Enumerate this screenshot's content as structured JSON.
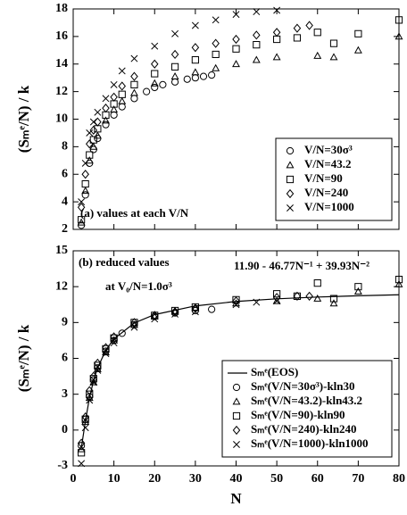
{
  "chart_data": [
    {
      "type": "scatter",
      "y_label": "(Sₘᵉ/N) / k",
      "annotation": "(a) values at each V/N",
      "xlim": [
        0,
        80
      ],
      "xticks": [
        0,
        10,
        20,
        30,
        40,
        50,
        60,
        70,
        80
      ],
      "show_xtick_labels": false,
      "ylim": [
        2,
        18
      ],
      "yticks": [
        2,
        4,
        6,
        8,
        10,
        12,
        14,
        16,
        18
      ],
      "legend": "lower right",
      "series": [
        {
          "name": "V/N=30σ³",
          "marker": "circle",
          "color": "#000000",
          "x": [
            2,
            3,
            4,
            5,
            6,
            8,
            10,
            12,
            15,
            18,
            20,
            22,
            25,
            28,
            30,
            32,
            34
          ],
          "values": [
            2.3,
            4.5,
            6.8,
            7.8,
            8.6,
            9.6,
            10.3,
            10.9,
            11.5,
            12.0,
            12.3,
            12.5,
            12.7,
            12.9,
            13.0,
            13.1,
            13.2
          ]
        },
        {
          "name": "V/N=43.2",
          "marker": "triangle",
          "color": "#000000",
          "x": [
            2,
            3,
            4,
            5,
            6,
            8,
            10,
            12,
            15,
            20,
            25,
            30,
            35,
            40,
            45,
            50,
            60,
            64,
            70,
            80
          ],
          "values": [
            2.5,
            4.8,
            7.0,
            8.0,
            8.8,
            9.9,
            10.7,
            11.3,
            11.9,
            12.6,
            13.1,
            13.4,
            13.7,
            14.0,
            14.3,
            14.5,
            14.6,
            14.5,
            15.0,
            16.0
          ]
        },
        {
          "name": "V/N=90",
          "marker": "square",
          "color": "#000000",
          "x": [
            2,
            3,
            4,
            5,
            6,
            8,
            10,
            12,
            15,
            20,
            25,
            30,
            35,
            40,
            45,
            50,
            55,
            60,
            64,
            70,
            80
          ],
          "values": [
            2.7,
            5.3,
            7.4,
            8.5,
            9.3,
            10.3,
            11.1,
            11.8,
            12.5,
            13.3,
            13.8,
            14.3,
            14.7,
            15.1,
            15.4,
            15.8,
            15.9,
            16.3,
            15.5,
            16.2,
            17.2
          ]
        },
        {
          "name": "V/N=240",
          "marker": "diamond",
          "color": "#000000",
          "x": [
            2,
            3,
            4,
            5,
            6,
            8,
            10,
            12,
            15,
            20,
            25,
            30,
            35,
            40,
            45,
            50,
            55,
            58
          ],
          "values": [
            3.6,
            6.0,
            8.2,
            9.2,
            9.8,
            10.8,
            11.6,
            12.4,
            13.1,
            14.0,
            14.7,
            15.2,
            15.5,
            15.8,
            16.1,
            16.3,
            16.6,
            16.8
          ]
        },
        {
          "name": "V/N=1000",
          "marker": "x",
          "color": "#000000",
          "x": [
            2,
            3,
            4,
            5,
            6,
            8,
            10,
            12,
            15,
            20,
            25,
            30,
            35,
            40,
            45,
            50
          ],
          "values": [
            4.0,
            6.8,
            9.0,
            9.8,
            10.5,
            11.5,
            12.5,
            13.5,
            14.4,
            15.3,
            16.2,
            16.8,
            17.2,
            17.6,
            17.8,
            17.9
          ]
        }
      ]
    },
    {
      "type": "scatter",
      "y_label": "(Sₘᵉ/N) / k",
      "x_label": "N",
      "annotation": "(b) reduced values",
      "annotation2": "at V₀/N=1.0σ³",
      "formula": "11.90 - 46.77N⁻¹ + 39.93N⁻²",
      "xlim": [
        0,
        80
      ],
      "xticks": [
        0,
        10,
        20,
        30,
        40,
        50,
        60,
        70,
        80
      ],
      "show_xtick_labels": true,
      "ylim": [
        -3,
        15
      ],
      "yticks": [
        -3,
        0,
        3,
        6,
        9,
        12,
        15
      ],
      "legend": "lower right",
      "series": [
        {
          "name": "Sₘᵉ(EOS)",
          "marker": "line",
          "color": "#000000",
          "x": [
            2,
            3,
            4,
            5,
            6,
            8,
            10,
            15,
            20,
            30,
            40,
            50,
            60,
            70,
            80
          ],
          "values": [
            -1.5,
            0.75,
            2.7,
            4.14,
            5.21,
            6.68,
            7.62,
            8.96,
            9.66,
            10.39,
            10.76,
            10.98,
            11.13,
            11.24,
            11.32
          ]
        },
        {
          "name": "Sₘᵉ(V/N=30σ³)-kln30",
          "marker": "circle",
          "color": "#000000",
          "x": [
            2,
            3,
            4,
            5,
            6,
            8,
            10,
            12,
            15,
            20,
            25,
            30,
            34
          ],
          "values": [
            -1.3,
            0.9,
            2.8,
            4.2,
            5.2,
            6.6,
            7.5,
            8.1,
            8.8,
            9.5,
            9.8,
            10.0,
            10.1
          ]
        },
        {
          "name": "Sₘᵉ(V/N=43.2)-kln43.2",
          "marker": "triangle",
          "color": "#000000",
          "x": [
            2,
            3,
            4,
            5,
            6,
            8,
            10,
            15,
            20,
            25,
            30,
            40,
            50,
            60,
            64,
            70,
            80
          ],
          "values": [
            -1.6,
            0.7,
            2.7,
            4.0,
            5.1,
            6.5,
            7.5,
            8.8,
            9.5,
            9.9,
            10.2,
            10.6,
            10.8,
            11.0,
            10.6,
            11.6,
            12.2
          ]
        },
        {
          "name": "Sₘᵉ(V/N=90)-kln90",
          "marker": "square",
          "color": "#000000",
          "x": [
            2,
            3,
            4,
            5,
            6,
            8,
            10,
            15,
            20,
            25,
            30,
            40,
            50,
            55,
            60,
            64,
            70,
            80
          ],
          "values": [
            -1.9,
            0.9,
            3.0,
            4.3,
            5.4,
            6.8,
            7.7,
            9.0,
            9.6,
            10.0,
            10.3,
            10.9,
            11.4,
            11.2,
            12.3,
            11.0,
            12.0,
            12.6
          ]
        },
        {
          "name": "Sₘᵉ(V/N=240)-kln240",
          "marker": "diamond",
          "color": "#000000",
          "x": [
            2,
            3,
            4,
            5,
            6,
            8,
            10,
            15,
            20,
            25,
            30,
            40,
            50,
            55,
            58
          ],
          "values": [
            -1.1,
            1.1,
            3.3,
            4.5,
            5.6,
            6.9,
            7.8,
            9.0,
            9.6,
            9.9,
            10.2,
            10.8,
            11.1,
            11.2,
            11.2
          ]
        },
        {
          "name": "Sₘᵉ(V/N=1000)-kln1000",
          "marker": "x",
          "color": "#000000",
          "x": [
            2,
            3,
            4,
            5,
            6,
            8,
            10,
            15,
            20,
            25,
            30,
            40,
            45,
            50
          ],
          "values": [
            -2.8,
            0.2,
            2.5,
            4.0,
            5.0,
            6.4,
            7.3,
            8.6,
            9.3,
            9.7,
            9.9,
            10.5,
            10.7,
            10.8
          ]
        }
      ]
    }
  ]
}
